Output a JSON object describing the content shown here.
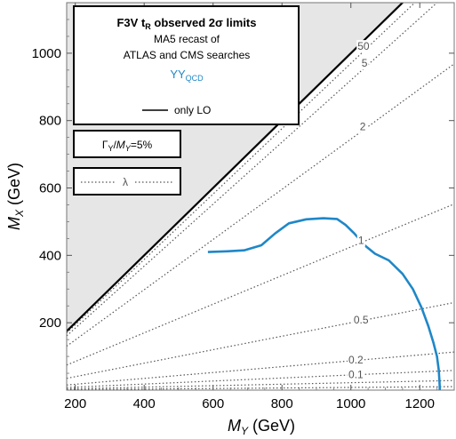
{
  "chart_data": {
    "type": "line",
    "title": "F3V t",
    "title_sub": "R",
    "title_rest": " observed 2σ limits",
    "subtitle_lines": [
      "MA5 recast of",
      "ATLAS and CMS searches"
    ],
    "series_label": "YY",
    "series_label_sub": "QCD",
    "legend_line_label": "only LO",
    "width_box": {
      "gamma": "Γ",
      "y_sub": "Y",
      "slash": "/",
      "m": "M",
      "m_sub": "Y",
      "value": "=5%"
    },
    "lambda_box_label": "λ",
    "xlabel": "M",
    "xlabel_sub": "Y",
    "xlabel_unit": " (GeV)",
    "ylabel": "M",
    "ylabel_sub": "X",
    "ylabel_unit": " (GeV)",
    "xlim": [
      175,
      1300
    ],
    "ylim": [
      0,
      1150
    ],
    "xticks": [
      200,
      400,
      600,
      800,
      1000,
      1200
    ],
    "yticks": [
      200,
      400,
      600,
      800,
      1000
    ],
    "grid": false,
    "excluded_region": "M_X > M_Y (shaded grey)",
    "colors": {
      "limit": "#1f87c8",
      "shade": "#e6e6e6",
      "diagonal": "#000000",
      "dotted": "#555555"
    },
    "lambda_lines": [
      {
        "label": "50",
        "slope": 0.97,
        "label_x": 1052
      },
      {
        "label": "5",
        "slope": 0.92,
        "label_x": 1055
      },
      {
        "label": "2",
        "slope": 0.745,
        "label_x": 1050
      },
      {
        "label": "1",
        "slope": 0.425,
        "label_x": 1045
      },
      {
        "label": "0.5",
        "slope": 0.2,
        "label_x": 1045
      },
      {
        "label": "0.2",
        "slope": 0.087,
        "label_x": 1030
      },
      {
        "label": "0.1",
        "slope": 0.045,
        "label_x": 1030
      },
      {
        "label": "",
        "slope": 0.022,
        "label_x": null
      },
      {
        "label": "",
        "slope": 0.008,
        "label_x": null
      }
    ],
    "series": [
      {
        "name": "YY",
        "x": [
          585,
          640,
          690,
          740,
          780,
          820,
          870,
          920,
          960,
          985,
          1010,
          1040,
          1070,
          1110,
          1150,
          1180,
          1205,
          1225,
          1240,
          1250,
          1255,
          1257,
          1258,
          1258
        ],
        "y": [
          410,
          412,
          415,
          430,
          465,
          495,
          507,
          510,
          508,
          490,
          465,
          430,
          405,
          385,
          345,
          300,
          245,
          190,
          140,
          100,
          60,
          30,
          10,
          0
        ]
      }
    ]
  }
}
